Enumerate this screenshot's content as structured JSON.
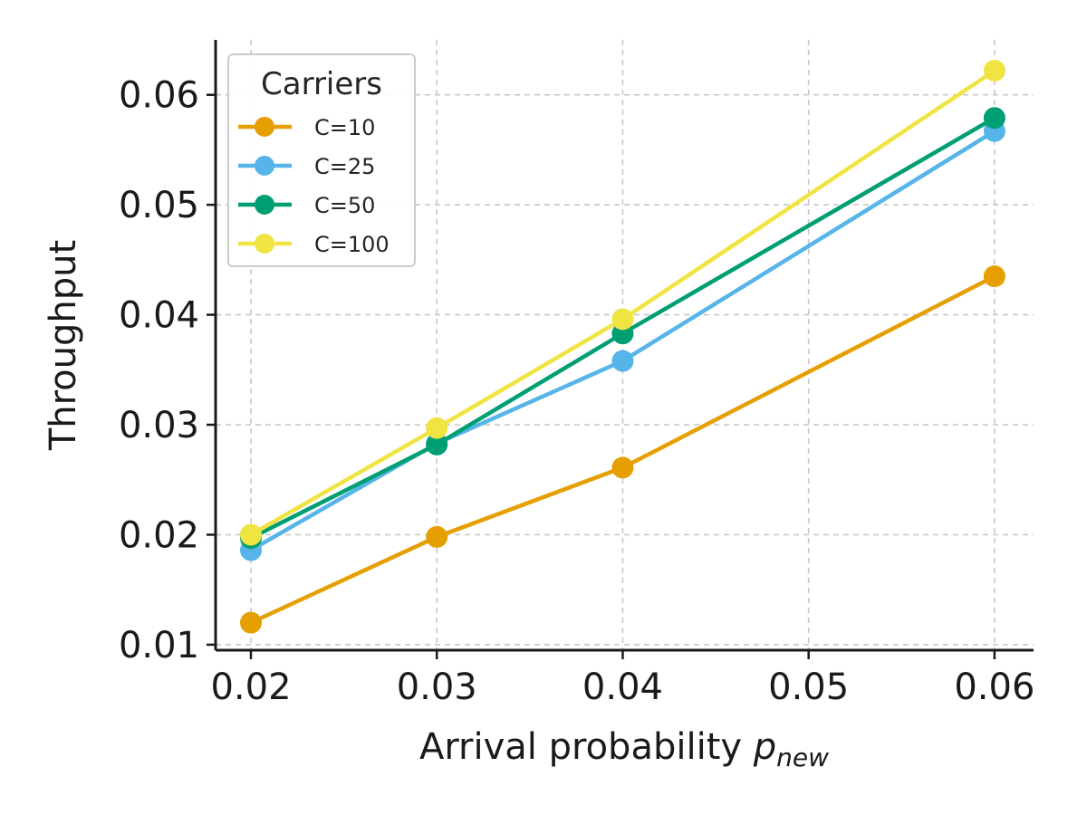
{
  "chart_data": {
    "type": "line",
    "xlabel_main": "Arrival probability ",
    "xlabel_var": "p",
    "xlabel_sub": "new",
    "ylabel": "Throughput",
    "x": [
      0.02,
      0.03,
      0.04,
      0.06
    ],
    "xlim": [
      0.0181,
      0.0621
    ],
    "ylim": [
      0.0095,
      0.065
    ],
    "x_ticks": [
      "0.02",
      "0.03",
      "0.04",
      "0.05",
      "0.06"
    ],
    "x_tick_values": [
      0.02,
      0.03,
      0.04,
      0.05,
      0.06
    ],
    "y_ticks": [
      "0.01",
      "0.02",
      "0.03",
      "0.04",
      "0.05",
      "0.06"
    ],
    "y_tick_values": [
      0.01,
      0.02,
      0.03,
      0.04,
      0.05,
      0.06
    ],
    "grid": true,
    "legend": {
      "title": "Carriers",
      "placement": "top-left"
    },
    "series": [
      {
        "name": "C=10",
        "color": "#E69F00",
        "values": [
          0.012,
          0.0198,
          0.0261,
          0.0435
        ]
      },
      {
        "name": "C=25",
        "color": "#56B4E9",
        "values": [
          0.0186,
          0.0283,
          0.0358,
          0.0567
        ]
      },
      {
        "name": "C=50",
        "color": "#009E73",
        "values": [
          0.0197,
          0.0282,
          0.0383,
          0.0579
        ]
      },
      {
        "name": "C=100",
        "color": "#F0E442",
        "values": [
          0.02,
          0.0297,
          0.0396,
          0.0622
        ]
      }
    ]
  }
}
